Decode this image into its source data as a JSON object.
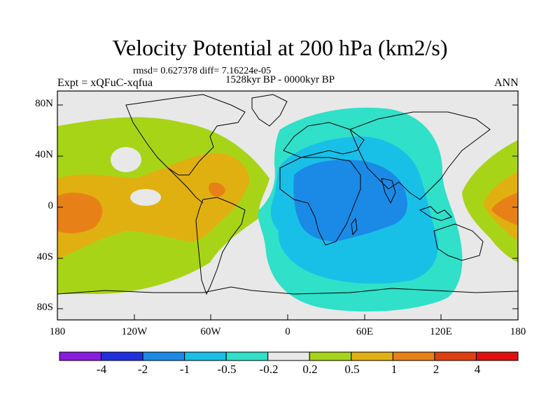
{
  "title": "Velocity Potential at 200 hPa (km2/s)",
  "stats": "rmsd= 0.627378  diff= 7.16224e-05",
  "period": "1528kyr BP - 0000kyr BP",
  "experiment": "Expt = xQFuC-xqfua",
  "season": "ANN",
  "y_axis_labels": [
    "80N",
    "40N",
    "0",
    "40S",
    "80S"
  ],
  "x_axis_labels": [
    "180",
    "120W",
    "60W",
    "0",
    "60E",
    "120E",
    "180"
  ],
  "colorbar": {
    "labels": [
      "-4",
      "-2",
      "-1",
      "-0.5",
      "-0.2",
      "0.2",
      "0.5",
      "1",
      "2",
      "4"
    ],
    "colors": [
      "#8a1be0",
      "#2030e0",
      "#1a8ae6",
      "#18c0e8",
      "#30e0c8",
      "#e8e8e8",
      "#a8d418",
      "#e0b010",
      "#e88018",
      "#e04010",
      "#e01010"
    ]
  },
  "field_colors": {
    "neutral": "#e8e8e8",
    "pos1": "#a8d418",
    "pos2": "#e0b010",
    "pos3": "#e88018",
    "neg1": "#30e0c8",
    "neg2": "#18c0e8",
    "neg3": "#1a8ae6"
  }
}
